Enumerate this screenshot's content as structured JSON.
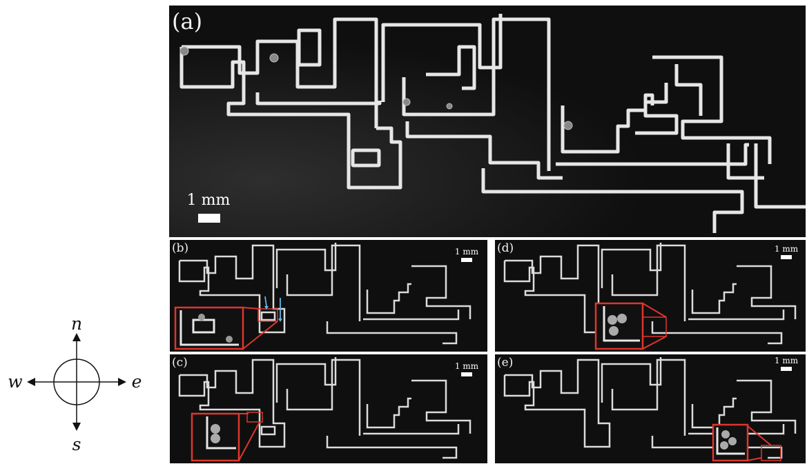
{
  "compass": {
    "north": "n",
    "south": "s",
    "east": "e",
    "west": "w"
  },
  "panels": {
    "a": {
      "label": "(a)",
      "scale": "1 mm"
    },
    "b": {
      "label": "(b)",
      "scale": "1 mm"
    },
    "c": {
      "label": "(c)",
      "scale": "1 mm"
    },
    "d": {
      "label": "(d)",
      "scale": "1 mm"
    },
    "e": {
      "label": "(e)",
      "scale": "1 mm"
    }
  },
  "colors": {
    "background": "#0f0f0f",
    "channel": "#e8e8e8",
    "inset_frame": "#e0362c",
    "arrow": "#63b8e8"
  }
}
